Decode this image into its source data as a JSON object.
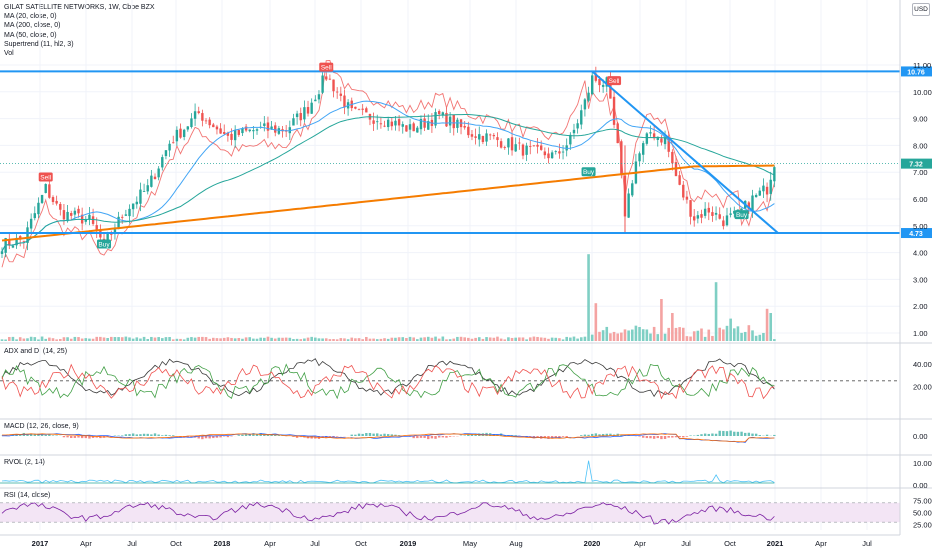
{
  "legend": {
    "title": "GILAT SATELLITE NETWORKS, 1W, Cboe BZX",
    "indicators": [
      "MA (20, close, 0)",
      "MA (200, close, 0)",
      "MA (50, close, 0)",
      "Supertrend (11, hl2, 3)",
      "Vol"
    ]
  },
  "currency_button": "USD",
  "panes": {
    "adx": "ADX and DI (14, 25)",
    "macd": "MACD (12, 26, close, 9)",
    "rvol": "RVOL (2, 14)",
    "rsi": "RSI (14, close)"
  },
  "chart_data": {
    "type": "candlestick",
    "symbol": "GILAT SATELLITE NETWORKS",
    "interval": "1W",
    "exchange": "Cboe BZX",
    "currency": "USD",
    "colors": {
      "up": "#26a69a",
      "down": "#ef5350",
      "ma200": "#f57c00",
      "ma20": "#42a5f5",
      "ma50": "#26a69a",
      "channel": "#2196f3"
    },
    "price_axis": {
      "labels": [
        "11.00",
        "10.00",
        "9.00",
        "8.00",
        "7.00",
        "6.00",
        "5.00",
        "4.00",
        "3.00",
        "2.00",
        "1.00"
      ],
      "range": [
        0.6,
        11.7
      ]
    },
    "time_axis": {
      "labels": [
        "2017",
        "Apr",
        "Jul",
        "Oct",
        "2018",
        "Apr",
        "Jul",
        "Oct",
        "2019",
        "May",
        "Aug",
        "2020",
        "Apr",
        "Jul",
        "Oct",
        "2021",
        "Apr",
        "Jul"
      ]
    },
    "horizontal_levels": [
      {
        "value": 10.76,
        "label": "10.76",
        "color": "#2196f3"
      },
      {
        "value": 4.73,
        "label": "4.73",
        "color": "#2196f3"
      }
    ],
    "last_price": {
      "value": 7.32,
      "label": "7.32",
      "color": "#26a69a"
    },
    "annotations": [
      {
        "text": "Sell",
        "week": 12,
        "price": 6.8,
        "type": "sell"
      },
      {
        "text": "Buy",
        "week": 28,
        "price": 4.3,
        "type": "buy"
      },
      {
        "text": "Sell",
        "week": 89,
        "price": 10.9,
        "type": "sell"
      },
      {
        "text": "Buy",
        "week": 161,
        "price": 7.0,
        "type": "buy"
      },
      {
        "text": "Sell",
        "week": 168,
        "price": 10.4,
        "type": "sell"
      },
      {
        "text": "Buy",
        "week": 203,
        "price": 5.4,
        "type": "buy"
      }
    ],
    "key_points": [
      [
        0,
        4.3
      ],
      [
        6,
        4.5
      ],
      [
        12,
        6.4
      ],
      [
        16,
        5.5
      ],
      [
        24,
        5.2
      ],
      [
        28,
        4.3
      ],
      [
        34,
        5.6
      ],
      [
        40,
        6.4
      ],
      [
        46,
        8.1
      ],
      [
        54,
        9.2
      ],
      [
        62,
        8.3
      ],
      [
        70,
        8.6
      ],
      [
        78,
        8.6
      ],
      [
        84,
        9.4
      ],
      [
        89,
        10.6
      ],
      [
        96,
        9.2
      ],
      [
        104,
        9.0
      ],
      [
        112,
        8.6
      ],
      [
        120,
        9.1
      ],
      [
        128,
        8.5
      ],
      [
        136,
        8.2
      ],
      [
        144,
        7.8
      ],
      [
        152,
        7.6
      ],
      [
        156,
        8.2
      ],
      [
        160,
        9.6
      ],
      [
        162,
        10.5
      ],
      [
        166,
        10.3
      ],
      [
        169,
        7.9
      ],
      [
        171,
        5.5
      ],
      [
        174,
        7.4
      ],
      [
        178,
        8.5
      ],
      [
        182,
        8.2
      ],
      [
        186,
        6.4
      ],
      [
        190,
        5.3
      ],
      [
        194,
        5.6
      ],
      [
        198,
        5.2
      ],
      [
        202,
        5.4
      ],
      [
        206,
        6.0
      ],
      [
        210,
        6.4
      ],
      [
        212,
        7.4
      ]
    ],
    "volume_spikes": [
      [
        161,
        0.62
      ],
      [
        163,
        0.27
      ],
      [
        181,
        0.3
      ],
      [
        184,
        0.2
      ],
      [
        196,
        0.42
      ],
      [
        200,
        0.16
      ],
      [
        210,
        0.23
      ],
      [
        211,
        0.2
      ]
    ]
  }
}
